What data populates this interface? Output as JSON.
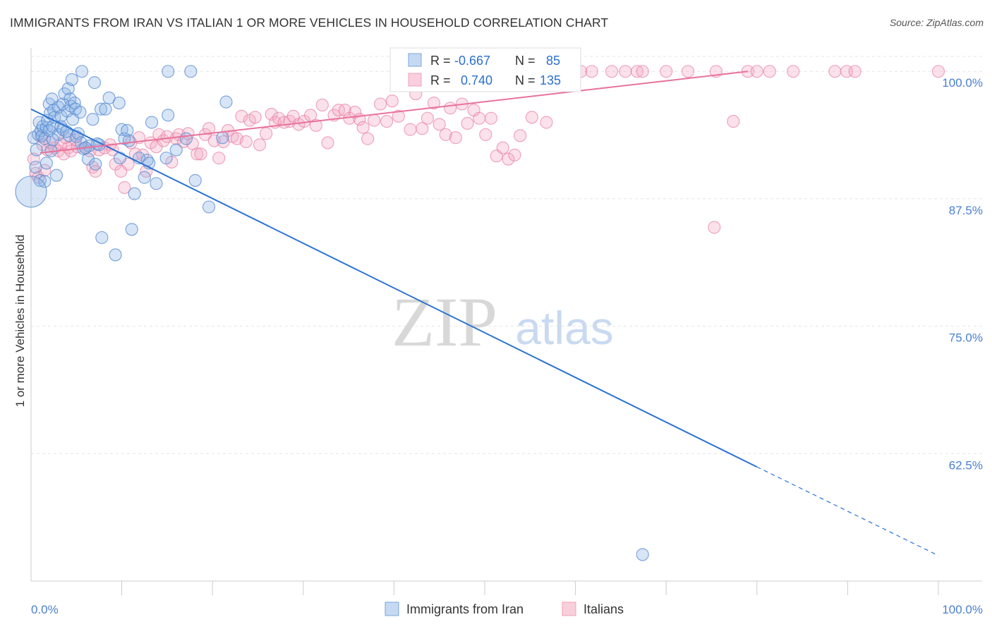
{
  "title": "IMMIGRANTS FROM IRAN VS ITALIAN 1 OR MORE VEHICLES IN HOUSEHOLD CORRELATION CHART",
  "source": "Source: ZipAtlas.com",
  "watermark": {
    "zip": "ZIP",
    "atlas": "atlas"
  },
  "colors": {
    "iran": "#7aa6dc",
    "iran_line": "#2b72d3",
    "italians": "#f0a0b8",
    "italians_line": "#e8729a",
    "tick_label": "#4a7fd0"
  },
  "legend_box": [
    {
      "r_label": "R =",
      "r_value": "-0.667",
      "n_label": "N =",
      "n_value": "85"
    },
    {
      "r_label": "R =",
      "r_value": "0.740",
      "n_label": "N =",
      "n_value": "135"
    }
  ],
  "chart_data": {
    "type": "scatter",
    "ylabel": "1 or more Vehicles in Household",
    "xlim": [
      0,
      100
    ],
    "ylim": [
      50,
      102.3
    ],
    "x_ticks": [
      "0.0%",
      "100.0%"
    ],
    "y_ticks": [
      {
        "value": 100,
        "label": "100.0%"
      },
      {
        "value": 87.5,
        "label": "87.5%"
      },
      {
        "value": 75,
        "label": "75.0%"
      },
      {
        "value": 62.5,
        "label": "62.5%"
      }
    ],
    "grid": true,
    "legend_position": "bottom-center",
    "series": [
      {
        "name": "Immigrants from Iran",
        "trend": {
          "x": [
            0,
            80,
            100
          ],
          "y": [
            96.3,
            61.2,
            52.5
          ]
        },
        "points": [
          [
            0.3,
            93.5
          ],
          [
            0.5,
            90.6
          ],
          [
            0.6,
            92.3
          ],
          [
            0.8,
            93.8
          ],
          [
            0.9,
            95
          ],
          [
            1,
            89.3
          ],
          [
            1.1,
            94.2
          ],
          [
            1.2,
            93.7
          ],
          [
            1.3,
            94.6
          ],
          [
            1.5,
            89.2
          ],
          [
            1.5,
            93.4
          ],
          [
            1.7,
            94.5
          ],
          [
            1.8,
            95.2
          ],
          [
            2,
            96.8
          ],
          [
            2,
            94.2
          ],
          [
            2.1,
            95.9
          ],
          [
            2.2,
            92.2
          ],
          [
            2.3,
            97.3
          ],
          [
            2.4,
            94.6
          ],
          [
            2.5,
            96.2
          ],
          [
            2.6,
            95.5
          ],
          [
            2.8,
            89.8
          ],
          [
            3,
            93.8
          ],
          [
            3,
            96.5
          ],
          [
            3.3,
            94.6
          ],
          [
            3.3,
            95.6
          ],
          [
            3.5,
            96.8
          ],
          [
            3.5,
            94.3
          ],
          [
            3.7,
            97.8
          ],
          [
            4,
            96.1
          ],
          [
            4.1,
            98.3
          ],
          [
            4.2,
            93.7
          ],
          [
            4.3,
            97.3
          ],
          [
            4.4,
            96.6
          ],
          [
            4.5,
            99.2
          ],
          [
            4.8,
            96.9
          ],
          [
            4.9,
            96.3
          ],
          [
            5,
            93.6
          ],
          [
            5.2,
            93.9
          ],
          [
            5.4,
            96
          ],
          [
            5.6,
            100
          ],
          [
            5.8,
            92.4
          ],
          [
            6.3,
            91.4
          ],
          [
            6.4,
            92.7
          ],
          [
            6.8,
            95.3
          ],
          [
            7,
            98.9
          ],
          [
            7.1,
            90.9
          ],
          [
            7.5,
            92.8
          ],
          [
            7.7,
            96.3
          ],
          [
            7.8,
            83.7
          ],
          [
            8.2,
            96.3
          ],
          [
            8.6,
            97.4
          ],
          [
            9.3,
            82
          ],
          [
            9.7,
            96.9
          ],
          [
            10,
            94.3
          ],
          [
            10.3,
            93.4
          ],
          [
            10.6,
            94.2
          ],
          [
            10.8,
            93.2
          ],
          [
            11.1,
            84.5
          ],
          [
            11.4,
            88
          ],
          [
            11.9,
            91.5
          ],
          [
            12.5,
            89.6
          ],
          [
            12.8,
            91.3
          ],
          [
            13.3,
            95
          ],
          [
            13.8,
            89
          ],
          [
            14.9,
            91.5
          ],
          [
            15.1,
            95.7
          ],
          [
            15.1,
            100
          ],
          [
            16,
            92.3
          ],
          [
            17.1,
            93.4
          ],
          [
            17.6,
            100
          ],
          [
            18.1,
            89.3
          ],
          [
            19.6,
            86.7
          ],
          [
            21.1,
            93.5
          ],
          [
            21.5,
            97
          ],
          [
            67.4,
            52.6
          ],
          [
            1.7,
            91
          ],
          [
            2.4,
            93.3
          ],
          [
            3.9,
            94.1
          ],
          [
            4.6,
            95.3
          ],
          [
            5.5,
            93
          ],
          [
            6,
            92.5
          ],
          [
            7.3,
            92.9
          ],
          [
            9.8,
            91.5
          ],
          [
            13,
            91
          ]
        ],
        "large_point": [
          0,
          88.2
        ]
      },
      {
        "name": "Italians",
        "trend": {
          "x": [
            1,
            79
          ],
          "y": [
            92,
            100
          ]
        },
        "points": [
          [
            0.3,
            91.4
          ],
          [
            0.5,
            90
          ],
          [
            0.8,
            89.6
          ],
          [
            1.1,
            93.6
          ],
          [
            1.3,
            92.8
          ],
          [
            1.5,
            90.3
          ],
          [
            1.8,
            92.3
          ],
          [
            2.1,
            93
          ],
          [
            2.6,
            92.5
          ],
          [
            3,
            92.2
          ],
          [
            3.3,
            92.9
          ],
          [
            3.6,
            91.9
          ],
          [
            3.8,
            93.5
          ],
          [
            4.1,
            92.5
          ],
          [
            4.4,
            92.2
          ],
          [
            4.9,
            93.3
          ],
          [
            5.1,
            92.6
          ],
          [
            6,
            92.5
          ],
          [
            6.5,
            92.2
          ],
          [
            6.8,
            90.6
          ],
          [
            7.1,
            90.2
          ],
          [
            7.5,
            92.3
          ],
          [
            8.1,
            92.5
          ],
          [
            8.7,
            92.8
          ],
          [
            9,
            92.3
          ],
          [
            9.3,
            90.9
          ],
          [
            9.9,
            90.2
          ],
          [
            10.3,
            88.6
          ],
          [
            10.7,
            90.9
          ],
          [
            11,
            93
          ],
          [
            11.5,
            91.9
          ],
          [
            11.9,
            93.5
          ],
          [
            12.3,
            91.8
          ],
          [
            12.7,
            90.2
          ],
          [
            13.2,
            93
          ],
          [
            13.8,
            92.6
          ],
          [
            14.1,
            93.8
          ],
          [
            14.6,
            93.2
          ],
          [
            15,
            93.6
          ],
          [
            15.5,
            91.1
          ],
          [
            16,
            93.4
          ],
          [
            16.3,
            93.8
          ],
          [
            16.8,
            93.1
          ],
          [
            17.3,
            93.9
          ],
          [
            17.8,
            92.9
          ],
          [
            18.3,
            91.9
          ],
          [
            18.7,
            91.9
          ],
          [
            19.2,
            93.8
          ],
          [
            19.6,
            94.4
          ],
          [
            20.2,
            93.2
          ],
          [
            20.7,
            91.5
          ],
          [
            21.2,
            93.1
          ],
          [
            21.7,
            94.2
          ],
          [
            22.2,
            93.6
          ],
          [
            22.7,
            93.4
          ],
          [
            23.2,
            95.6
          ],
          [
            23.7,
            93.1
          ],
          [
            24.1,
            95.2
          ],
          [
            24.7,
            95.5
          ],
          [
            25.2,
            92.8
          ],
          [
            25.9,
            93.9
          ],
          [
            26.5,
            95.8
          ],
          [
            26.9,
            95
          ],
          [
            27.3,
            95.4
          ],
          [
            27.9,
            95
          ],
          [
            28.5,
            95.1
          ],
          [
            28.9,
            95.6
          ],
          [
            29.5,
            94.8
          ],
          [
            30.1,
            95.1
          ],
          [
            30.8,
            95.7
          ],
          [
            31.4,
            94.7
          ],
          [
            32.1,
            96.7
          ],
          [
            32.7,
            93
          ],
          [
            33.4,
            95.7
          ],
          [
            33.9,
            96.2
          ],
          [
            34.6,
            96.2
          ],
          [
            35.1,
            95.4
          ],
          [
            35.7,
            96
          ],
          [
            36.2,
            95.3
          ],
          [
            36.6,
            94.5
          ],
          [
            37.1,
            93.4
          ],
          [
            37.8,
            95.2
          ],
          [
            38.5,
            96.8
          ],
          [
            39.2,
            95.1
          ],
          [
            39.8,
            97.1
          ],
          [
            40.5,
            95.6
          ],
          [
            41.1,
            99.3
          ],
          [
            41.8,
            94.3
          ],
          [
            42.4,
            97.8
          ],
          [
            43.1,
            94.4
          ],
          [
            43.7,
            95.4
          ],
          [
            44.4,
            96.9
          ],
          [
            45,
            94.8
          ],
          [
            45.7,
            93.8
          ],
          [
            46.2,
            96.4
          ],
          [
            46.8,
            93.5
          ],
          [
            47.5,
            96.8
          ],
          [
            48.1,
            94.9
          ],
          [
            48.8,
            96.2
          ],
          [
            49.4,
            95.4
          ],
          [
            50.1,
            93.8
          ],
          [
            50.7,
            95.4
          ],
          [
            51.3,
            91.7
          ],
          [
            52,
            92.5
          ],
          [
            52.6,
            91.4
          ],
          [
            53.3,
            91.8
          ],
          [
            53.9,
            93.7
          ],
          [
            55.2,
            95.5
          ],
          [
            56.8,
            95
          ],
          [
            58,
            100
          ],
          [
            59.3,
            100
          ],
          [
            60.6,
            100
          ],
          [
            61.8,
            100
          ],
          [
            64,
            100
          ],
          [
            65.5,
            100
          ],
          [
            66.8,
            100
          ],
          [
            67.4,
            100
          ],
          [
            70,
            100
          ],
          [
            72.4,
            100
          ],
          [
            75.3,
            84.7
          ],
          [
            75.5,
            100
          ],
          [
            77.4,
            95.1
          ],
          [
            79,
            100
          ],
          [
            80,
            100
          ],
          [
            81.4,
            100
          ],
          [
            84,
            100
          ],
          [
            88.6,
            100
          ],
          [
            89.9,
            100
          ],
          [
            90.8,
            100
          ],
          [
            100,
            100
          ],
          [
            45,
            100
          ],
          [
            47,
            100
          ],
          [
            49.8,
            100
          ],
          [
            51.5,
            100
          ],
          [
            53.2,
            100
          ],
          [
            54.6,
            100
          ]
        ]
      }
    ]
  }
}
